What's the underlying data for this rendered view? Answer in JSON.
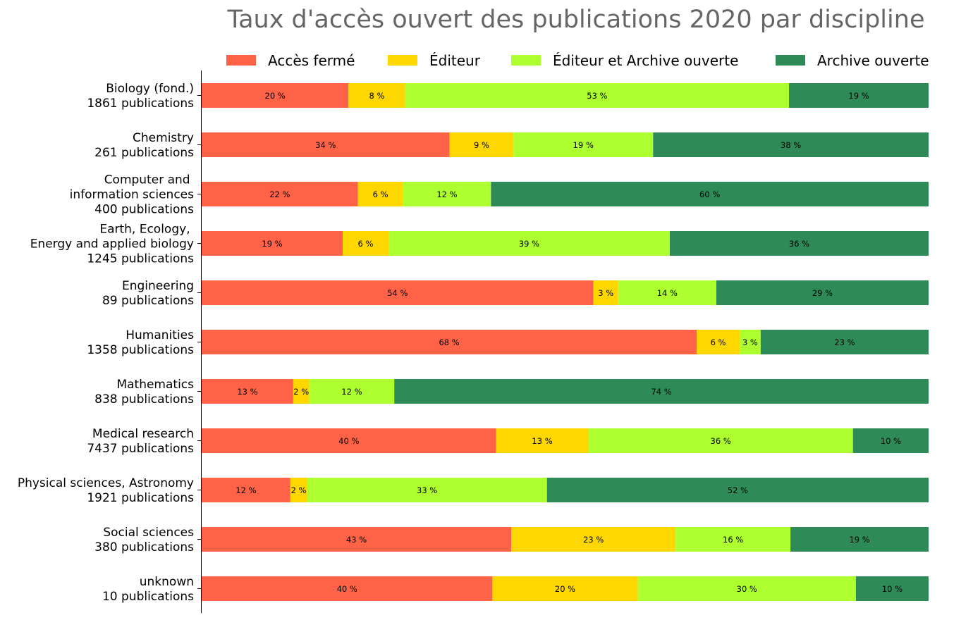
{
  "chart_data": {
    "type": "bar",
    "orientation": "horizontal",
    "stacked": true,
    "title": "Taux d'accès ouvert des publications 2020 par discipline",
    "xlabel": "",
    "ylabel": "",
    "xlim": [
      0,
      100
    ],
    "grid": false,
    "legend_position": "top",
    "categories": [
      [
        "Biology (fond.)",
        "1861 publications"
      ],
      [
        "Chemistry",
        "261 publications"
      ],
      [
        "Computer and ",
        "information sciences",
        "400 publications"
      ],
      [
        "Earth, Ecology, ",
        "Energy and applied biology",
        "1245 publications"
      ],
      [
        "Engineering",
        "89 publications"
      ],
      [
        "Humanities",
        "1358 publications"
      ],
      [
        "Mathematics",
        "838 publications"
      ],
      [
        "Medical research",
        "7437 publications"
      ],
      [
        "Physical sciences, Astronomy",
        "1921 publications"
      ],
      [
        "Social sciences",
        "380 publications"
      ],
      [
        "unknown",
        "10 publications"
      ]
    ],
    "series": [
      {
        "name": "Accès fermé",
        "color": "#ff6347",
        "values": [
          20.2,
          34.1,
          21.5,
          19.4,
          53.9,
          68.1,
          12.6,
          40.5,
          12.2,
          42.6,
          40.0
        ],
        "labels": [
          "20 %",
          "34 %",
          "22 %",
          "19 %",
          "54 %",
          "68 %",
          "13 %",
          "40 %",
          "12 %",
          "43 %",
          "40 %"
        ]
      },
      {
        "name": "Éditeur",
        "color": "#ffd700",
        "values": [
          7.8,
          8.8,
          6.2,
          6.3,
          3.4,
          5.9,
          2.2,
          12.7,
          2.3,
          22.6,
          20.0
        ],
        "labels": [
          "8 %",
          "9 %",
          "6 %",
          "6 %",
          "3 %",
          "6 %",
          "2 %",
          "13 %",
          "2 %",
          "23 %",
          "20 %"
        ]
      },
      {
        "name": "Éditeur et Archive ouverte",
        "color": "#adff2f",
        "values": [
          52.8,
          19.2,
          12.1,
          38.7,
          13.5,
          2.9,
          11.7,
          36.4,
          33.0,
          15.8,
          30.0
        ],
        "labels": [
          "53 %",
          "19 %",
          "12 %",
          "39 %",
          "14 %",
          "3 %",
          "12 %",
          "36 %",
          "33 %",
          "16 %",
          "30 %"
        ]
      },
      {
        "name": "Archive ouverte",
        "color": "#2e8b57",
        "values": [
          19.2,
          37.9,
          60.2,
          35.6,
          29.2,
          23.1,
          73.5,
          10.4,
          52.5,
          19.0,
          10.0
        ],
        "labels": [
          "19 %",
          "38 %",
          "60 %",
          "36 %",
          "29 %",
          "23 %",
          "74 %",
          "10 %",
          "52 %",
          "19 %",
          "10 %"
        ]
      }
    ]
  },
  "colors": {
    "title": "#666666",
    "axis": "#000000",
    "text": "#000000",
    "background": "#ffffff"
  }
}
